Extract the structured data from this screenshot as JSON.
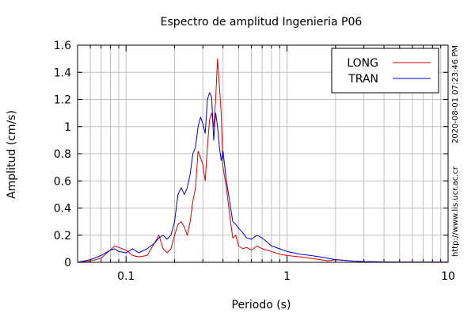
{
  "chart_data": {
    "type": "line",
    "title": "Espectro de amplitud Ingenieria P06",
    "xlabel": "Periodo (s)",
    "ylabel": "Amplitud (cm/s)",
    "x_scale": "log",
    "xlim": [
      0.05,
      10
    ],
    "ylim": [
      0,
      1.6
    ],
    "x_ticks": [
      0.1,
      1,
      10
    ],
    "x_tick_labels": [
      "0.1",
      "1",
      "10"
    ],
    "y_ticks": [
      0,
      0.2,
      0.4,
      0.6,
      0.8,
      1,
      1.2,
      1.4,
      1.6
    ],
    "y_tick_labels": [
      "0",
      "0.2",
      "0.4",
      "0.6",
      "0.8",
      "1",
      "1.2",
      "1.4",
      "1.6"
    ],
    "grid": true,
    "legend_position": "top-right",
    "series": [
      {
        "name": "LONG",
        "color": "#dd0000",
        "x": [
          0.05,
          0.06,
          0.07,
          0.078,
          0.085,
          0.09,
          0.1,
          0.11,
          0.12,
          0.135,
          0.15,
          0.16,
          0.17,
          0.18,
          0.19,
          0.2,
          0.21,
          0.22,
          0.23,
          0.24,
          0.25,
          0.26,
          0.27,
          0.28,
          0.29,
          0.3,
          0.31,
          0.32,
          0.33,
          0.34,
          0.35,
          0.36,
          0.37,
          0.38,
          0.39,
          0.4,
          0.42,
          0.44,
          0.46,
          0.48,
          0.5,
          0.53,
          0.56,
          0.6,
          0.65,
          0.7,
          0.75,
          0.8,
          0.9,
          1.0,
          1.2,
          1.4,
          1.6,
          1.8,
          2.0,
          2.5,
          3.0,
          4.0,
          5.0,
          7.0,
          10.0
        ],
        "y": [
          0.0,
          0.01,
          0.03,
          0.08,
          0.12,
          0.11,
          0.09,
          0.05,
          0.04,
          0.05,
          0.14,
          0.2,
          0.1,
          0.07,
          0.1,
          0.2,
          0.28,
          0.3,
          0.26,
          0.2,
          0.3,
          0.45,
          0.55,
          0.82,
          0.77,
          0.72,
          0.6,
          0.85,
          1.05,
          1.1,
          1.0,
          1.2,
          1.5,
          1.3,
          1.1,
          0.7,
          0.55,
          0.35,
          0.18,
          0.2,
          0.12,
          0.1,
          0.11,
          0.09,
          0.12,
          0.1,
          0.09,
          0.08,
          0.06,
          0.05,
          0.04,
          0.03,
          0.02,
          0.01,
          0.02,
          0.01,
          0.005,
          0.003,
          0.002,
          0.002,
          0.001
        ]
      },
      {
        "name": "TRAN",
        "color": "#0000cc",
        "x": [
          0.05,
          0.06,
          0.07,
          0.08,
          0.085,
          0.09,
          0.1,
          0.11,
          0.12,
          0.135,
          0.15,
          0.16,
          0.17,
          0.18,
          0.19,
          0.2,
          0.21,
          0.22,
          0.23,
          0.24,
          0.25,
          0.26,
          0.27,
          0.28,
          0.29,
          0.3,
          0.31,
          0.32,
          0.33,
          0.34,
          0.35,
          0.36,
          0.37,
          0.38,
          0.39,
          0.4,
          0.42,
          0.44,
          0.46,
          0.48,
          0.5,
          0.53,
          0.56,
          0.6,
          0.65,
          0.7,
          0.75,
          0.8,
          0.9,
          1.0,
          1.2,
          1.4,
          1.6,
          1.8,
          2.0,
          2.5,
          3.0,
          4.0,
          5.0,
          7.0,
          10.0
        ],
        "y": [
          0.0,
          0.02,
          0.05,
          0.09,
          0.1,
          0.08,
          0.07,
          0.1,
          0.07,
          0.1,
          0.14,
          0.18,
          0.2,
          0.17,
          0.2,
          0.3,
          0.5,
          0.55,
          0.5,
          0.55,
          0.65,
          0.8,
          0.85,
          1.0,
          1.07,
          1.02,
          0.95,
          1.2,
          1.25,
          1.22,
          0.9,
          1.1,
          1.0,
          0.85,
          0.75,
          0.82,
          0.6,
          0.45,
          0.3,
          0.28,
          0.25,
          0.22,
          0.18,
          0.17,
          0.2,
          0.18,
          0.15,
          0.12,
          0.1,
          0.08,
          0.06,
          0.05,
          0.04,
          0.03,
          0.02,
          0.01,
          0.005,
          0.003,
          0.002,
          0.002,
          0.001
        ]
      }
    ]
  },
  "side_text": {
    "timestamp": "2020-08-01 07:23:46 PM",
    "url": "http://www.lis.ucr.ac.cr"
  }
}
